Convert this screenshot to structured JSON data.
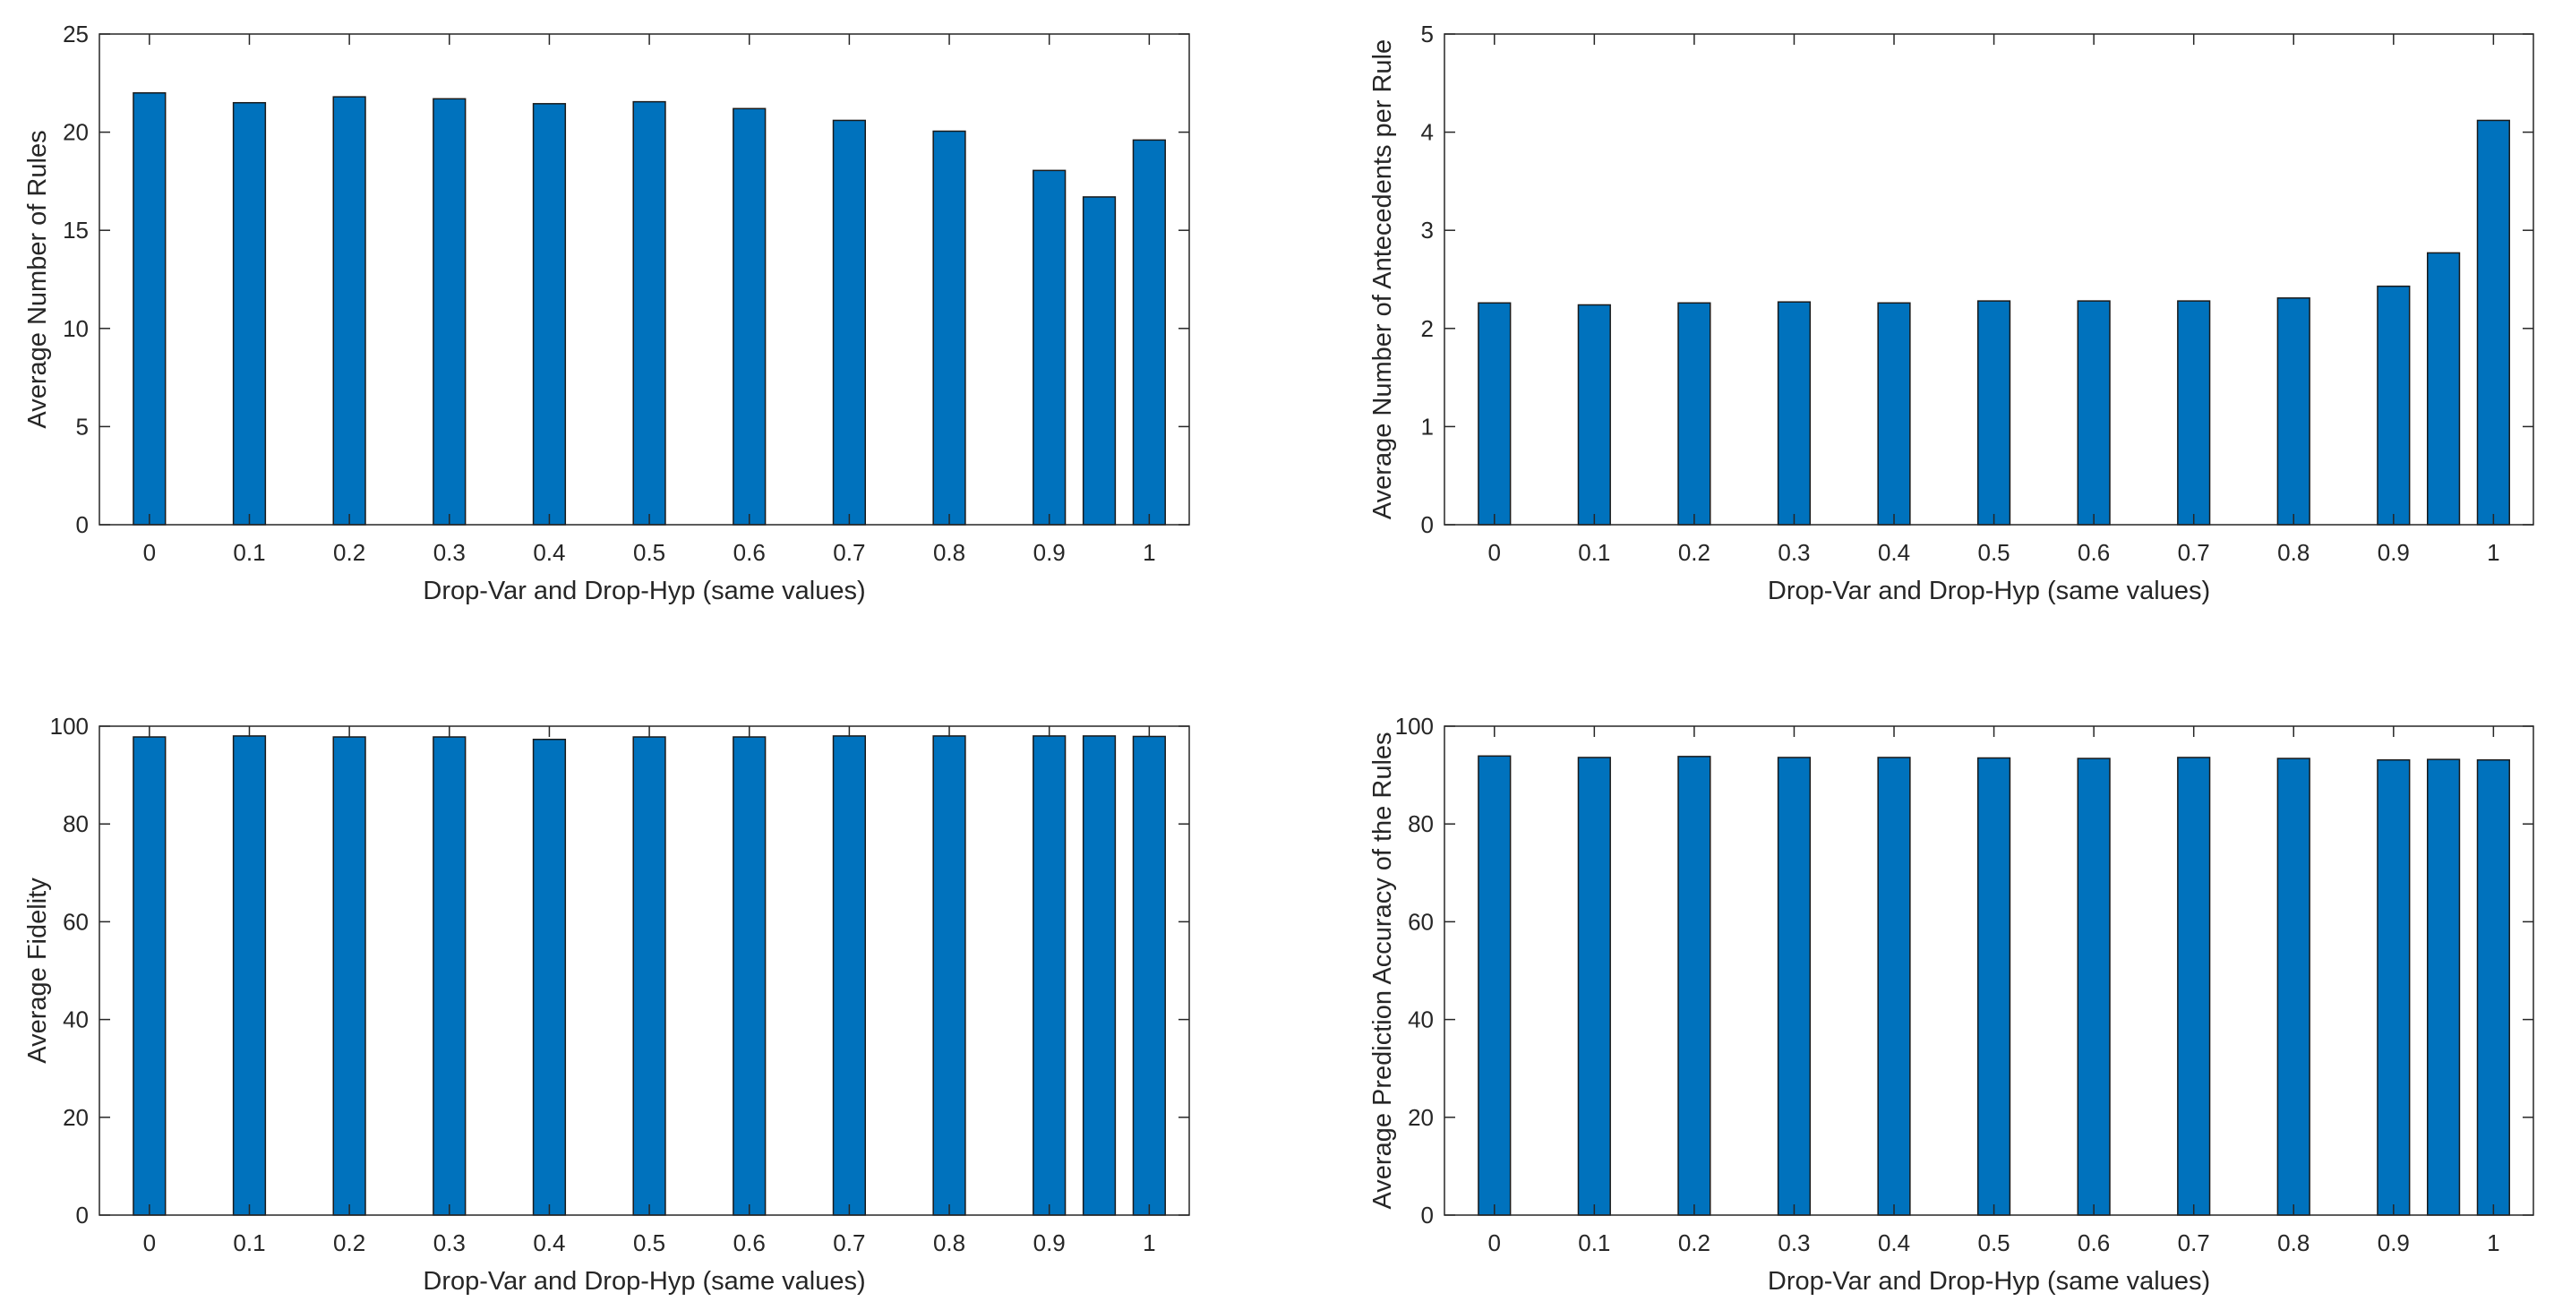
{
  "chart_data": [
    {
      "type": "bar",
      "xlabel": "Drop-Var and Drop-Hyp (same values)",
      "ylabel": "Average Number of Rules",
      "x": [
        0,
        0.1,
        0.2,
        0.3,
        0.4,
        0.5,
        0.6,
        0.7,
        0.8,
        0.9,
        0.95,
        1
      ],
      "values": [
        22.0,
        21.5,
        21.8,
        21.7,
        21.45,
        21.55,
        21.2,
        20.6,
        20.05,
        18.05,
        16.7,
        19.6
      ],
      "color": "#0072bd",
      "xlim": [
        -0.05,
        1.04
      ],
      "ylim": [
        0,
        25
      ],
      "xticks": [
        0,
        0.1,
        0.2,
        0.3,
        0.4,
        0.5,
        0.6,
        0.7,
        0.8,
        0.9,
        1
      ],
      "yticks": [
        0,
        5,
        10,
        15,
        20,
        25
      ]
    },
    {
      "type": "bar",
      "xlabel": "Drop-Var and Drop-Hyp (same values)",
      "ylabel": "Average Number of Antecedents per Rule",
      "x": [
        0,
        0.1,
        0.2,
        0.3,
        0.4,
        0.5,
        0.6,
        0.7,
        0.8,
        0.9,
        0.95,
        1
      ],
      "values": [
        2.26,
        2.24,
        2.26,
        2.27,
        2.26,
        2.28,
        2.28,
        2.28,
        2.31,
        2.43,
        2.77,
        4.12
      ],
      "color": "#0072bd",
      "xlim": [
        -0.05,
        1.04
      ],
      "ylim": [
        0,
        5
      ],
      "xticks": [
        0,
        0.1,
        0.2,
        0.3,
        0.4,
        0.5,
        0.6,
        0.7,
        0.8,
        0.9,
        1
      ],
      "yticks": [
        0,
        1,
        2,
        3,
        4,
        5
      ]
    },
    {
      "type": "bar",
      "xlabel": "Drop-Var and Drop-Hyp (same values)",
      "ylabel": "Average Fidelity",
      "x": [
        0,
        0.1,
        0.2,
        0.3,
        0.4,
        0.5,
        0.6,
        0.7,
        0.8,
        0.9,
        0.95,
        1
      ],
      "values": [
        97.8,
        98.0,
        97.8,
        97.8,
        97.3,
        97.8,
        97.8,
        98.0,
        98.0,
        98.0,
        98.0,
        97.9
      ],
      "color": "#0072bd",
      "xlim": [
        -0.05,
        1.04
      ],
      "ylim": [
        0,
        100
      ],
      "xticks": [
        0,
        0.1,
        0.2,
        0.3,
        0.4,
        0.5,
        0.6,
        0.7,
        0.8,
        0.9,
        1
      ],
      "yticks": [
        0,
        20,
        40,
        60,
        80,
        100
      ]
    },
    {
      "type": "bar",
      "xlabel": "Drop-Var and Drop-Hyp (same values)",
      "ylabel": "Average Prediction Accuracy of the Rules",
      "x": [
        0,
        0.1,
        0.2,
        0.3,
        0.4,
        0.5,
        0.6,
        0.7,
        0.8,
        0.9,
        0.95,
        1
      ],
      "values": [
        93.9,
        93.6,
        93.8,
        93.6,
        93.6,
        93.5,
        93.4,
        93.6,
        93.4,
        93.1,
        93.2,
        93.1
      ],
      "color": "#0072bd",
      "xlim": [
        -0.05,
        1.04
      ],
      "ylim": [
        0,
        100
      ],
      "xticks": [
        0,
        0.1,
        0.2,
        0.3,
        0.4,
        0.5,
        0.6,
        0.7,
        0.8,
        0.9,
        1
      ],
      "yticks": [
        0,
        20,
        40,
        60,
        80,
        100
      ]
    }
  ]
}
